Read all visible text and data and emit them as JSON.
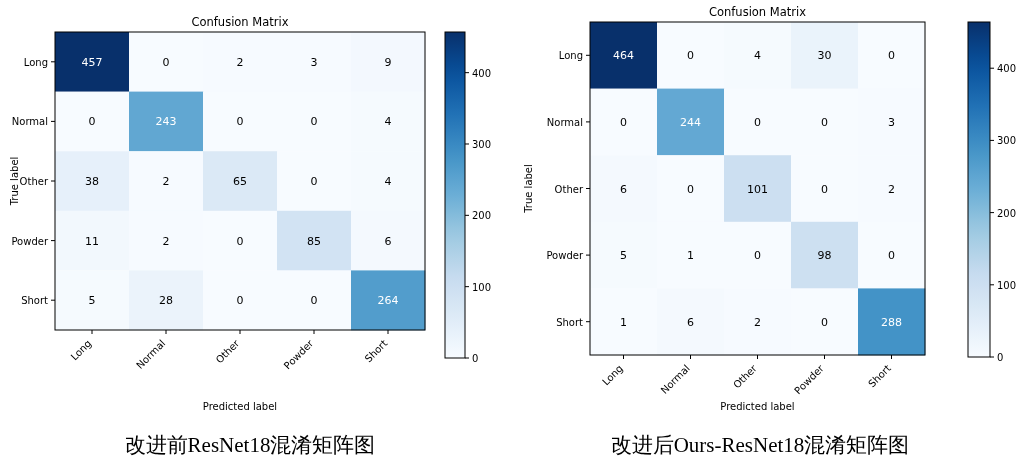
{
  "chart_data": [
    {
      "type": "heatmap",
      "title": "Confusion Matrix",
      "xlabel": "Predicted label",
      "ylabel": "True label",
      "categories": [
        "Long",
        "Normal",
        "Other",
        "Powder",
        "Short"
      ],
      "y_categories": [
        "Long",
        "Normal",
        "Other",
        "Powder",
        "Short"
      ],
      "cells": [
        [
          457,
          0,
          2,
          3,
          9
        ],
        [
          0,
          243,
          0,
          0,
          4
        ],
        [
          38,
          2,
          65,
          0,
          4
        ],
        [
          11,
          2,
          0,
          85,
          6
        ],
        [
          5,
          28,
          0,
          0,
          264
        ]
      ],
      "clim": [
        0,
        457
      ],
      "cticks": [
        0,
        100,
        200,
        300,
        400
      ],
      "data_labels": true,
      "annotations": [
        "改进前ResNet18混淆矩阵图"
      ]
    },
    {
      "type": "heatmap",
      "title": "Confusion Matrix",
      "xlabel": "Predicted label",
      "ylabel": "True label",
      "categories": [
        "Long",
        "Normal",
        "Other",
        "Powder",
        "Short"
      ],
      "y_categories": [
        "Long",
        "Normal",
        "Other",
        "Powder",
        "Short"
      ],
      "cells": [
        [
          464,
          0,
          4,
          30,
          0
        ],
        [
          0,
          244,
          0,
          0,
          3
        ],
        [
          6,
          0,
          101,
          0,
          2
        ],
        [
          5,
          1,
          0,
          98,
          0
        ],
        [
          1,
          6,
          2,
          0,
          288
        ]
      ],
      "clim": [
        0,
        464
      ],
      "cticks": [
        0,
        100,
        200,
        300,
        400
      ],
      "data_labels": true,
      "annotations": [
        "改进后Ours-ResNet18混淆矩阵图"
      ]
    }
  ]
}
